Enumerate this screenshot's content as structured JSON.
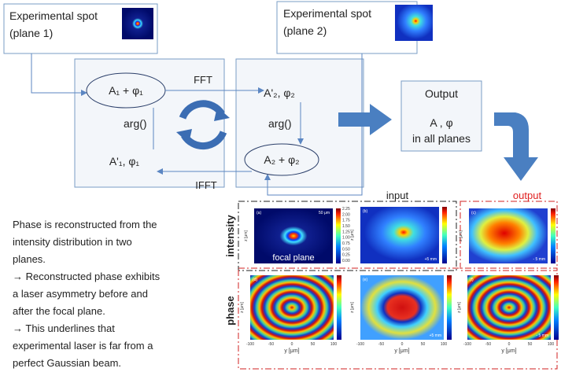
{
  "spot1": {
    "title": "Experimental spot",
    "subtitle": "(plane 1)"
  },
  "spot2": {
    "title": "Experimental spot",
    "subtitle": "(plane 2)"
  },
  "left_box": {
    "top": "A₁  +  φ₁",
    "arg": "arg()",
    "bottom": "A'₁, φ₁"
  },
  "fft": "FFT",
  "ifft": "IFFT",
  "right_box": {
    "top": "A'₂, φ₂",
    "arg": "arg()",
    "bottom": "A₂  +  φ₂"
  },
  "output_box": {
    "title": "Output",
    "line1": "A , φ",
    "line2": "in all planes"
  },
  "description": [
    "Phase is reconstructed from the",
    "intensity distribution in two",
    "planes.",
    "→ Reconstructed phase exhibits",
    "a laser asymmetry before and",
    "after the focal plane.",
    "→ This underlines that",
    "experimental laser is far from a",
    "perfect Gaussian beam."
  ],
  "figure": {
    "input_label": "input",
    "output_label": "output",
    "row_labels": [
      "intensity",
      "phase"
    ],
    "panels": [
      {
        "tag": "(a)",
        "note": "focal plane"
      },
      {
        "tag": "(b)",
        "note": "+5 mm"
      },
      {
        "tag": "(c)",
        "note": "- 5 mm"
      },
      {
        "tag": "(d)"
      },
      {
        "tag": "(e)",
        "note": "+5 mm"
      },
      {
        "tag": "(f)",
        "note": "- 5 mm"
      }
    ],
    "scale_bar": "50 μm",
    "x_ticks": [
      "-100",
      "-50",
      "0",
      "50",
      "100"
    ],
    "x_axis_label": "y [μm]",
    "y_axis_label": "z [μm]",
    "colorbar_a": [
      "2.25",
      "2.00",
      "1.75",
      "1.50",
      "1.25",
      "1.00",
      "0.75",
      "0.50",
      "0.25",
      "0.00"
    ]
  }
}
